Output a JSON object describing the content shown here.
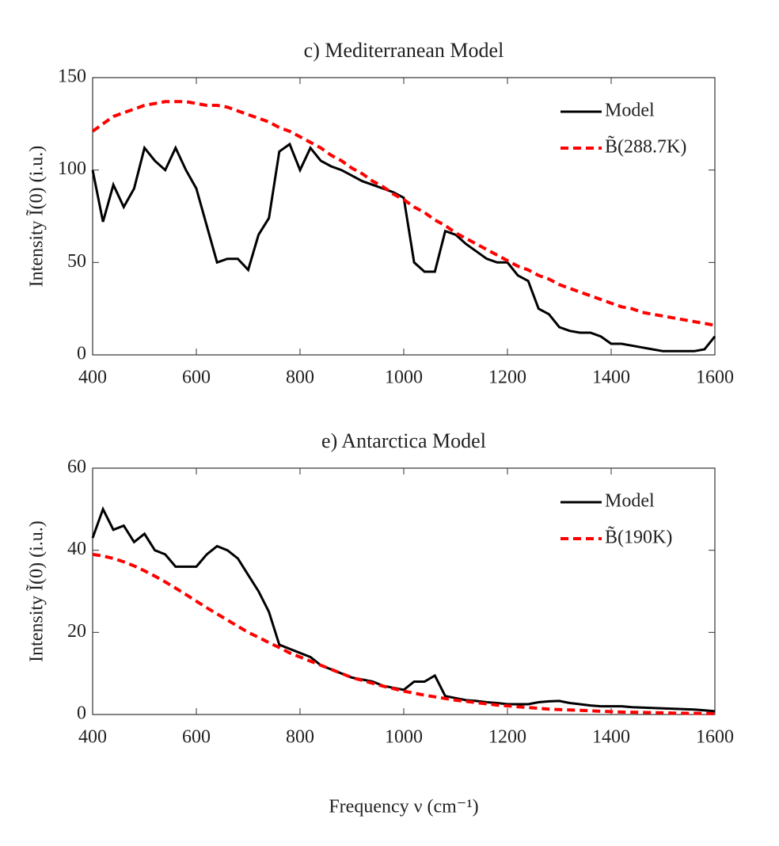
{
  "chart_data": [
    {
      "type": "line",
      "title": "c) Mediterranean Model",
      "ylabel": "Intensity Ĩ(0) (i.u.)",
      "x": [
        400,
        420,
        440,
        460,
        480,
        500,
        520,
        540,
        560,
        580,
        600,
        620,
        640,
        660,
        680,
        700,
        720,
        740,
        760,
        780,
        800,
        820,
        840,
        860,
        880,
        900,
        920,
        940,
        960,
        980,
        1000,
        1020,
        1040,
        1060,
        1080,
        1100,
        1120,
        1140,
        1160,
        1180,
        1200,
        1220,
        1240,
        1260,
        1280,
        1300,
        1320,
        1340,
        1360,
        1380,
        1400,
        1420,
        1440,
        1460,
        1480,
        1500,
        1520,
        1540,
        1560,
        1580,
        1600
      ],
      "series": [
        {
          "name": "Model",
          "color": "#000000",
          "style": "solid",
          "values": [
            100,
            72,
            92,
            80,
            90,
            112,
            105,
            100,
            112,
            100,
            90,
            70,
            50,
            52,
            52,
            46,
            65,
            74,
            110,
            114,
            100,
            112,
            105,
            102,
            100,
            97,
            94,
            92,
            90,
            88,
            85,
            50,
            45,
            45,
            67,
            65,
            60,
            56,
            52,
            50,
            50,
            43,
            40,
            25,
            22,
            15,
            13,
            12,
            12,
            10,
            6,
            6,
            5,
            4,
            3,
            2,
            2,
            2,
            2,
            3,
            10
          ]
        },
        {
          "name": "B̃(288.7K)",
          "color": "#ff0000",
          "style": "dashed",
          "values": [
            121,
            125,
            129,
            131,
            133,
            135,
            136,
            137,
            137,
            137,
            136,
            135,
            135,
            134,
            132,
            130,
            128,
            126,
            123,
            121,
            118,
            115,
            112,
            108,
            105,
            101,
            98,
            94,
            91,
            87,
            84,
            80,
            77,
            73,
            70,
            66,
            63,
            60,
            57,
            54,
            51,
            48,
            46,
            43,
            41,
            38,
            36,
            34,
            32,
            30,
            28,
            26,
            25,
            23,
            22,
            21,
            20,
            19,
            18,
            17,
            16
          ]
        }
      ],
      "xlim": [
        400,
        1600
      ],
      "xticks": [
        400,
        600,
        800,
        1000,
        1200,
        1400,
        1600
      ],
      "ylim": [
        0,
        150
      ],
      "yticks": [
        0,
        50,
        100,
        150
      ],
      "legend": "upper right"
    },
    {
      "type": "line",
      "title": "e) Antarctica Model",
      "ylabel": "Intensity Ĩ(0) (i.u.)",
      "xlabel": "Frequency ν (cm⁻¹)",
      "x": [
        400,
        420,
        440,
        460,
        480,
        500,
        520,
        540,
        560,
        580,
        600,
        620,
        640,
        660,
        680,
        700,
        720,
        740,
        760,
        780,
        800,
        820,
        840,
        860,
        880,
        900,
        920,
        940,
        960,
        980,
        1000,
        1020,
        1040,
        1060,
        1080,
        1100,
        1120,
        1140,
        1160,
        1180,
        1200,
        1220,
        1240,
        1260,
        1280,
        1300,
        1320,
        1340,
        1360,
        1380,
        1400,
        1420,
        1440,
        1460,
        1480,
        1500,
        1520,
        1540,
        1560,
        1580,
        1600
      ],
      "series": [
        {
          "name": "Model",
          "color": "#000000",
          "style": "solid",
          "values": [
            43,
            50,
            45,
            46,
            42,
            44,
            40,
            39,
            36,
            36,
            36,
            39,
            41,
            40,
            38,
            34,
            30,
            25,
            17,
            16,
            15,
            14,
            12,
            11,
            10,
            9,
            8.5,
            8,
            7,
            6.5,
            6,
            8,
            8,
            9.5,
            4.5,
            4,
            3.5,
            3.3,
            3,
            2.8,
            2.5,
            2.5,
            2.5,
            3,
            3.2,
            3.3,
            2.8,
            2.5,
            2.2,
            2,
            2,
            2,
            1.8,
            1.7,
            1.6,
            1.5,
            1.4,
            1.3,
            1.2,
            1,
            0.8
          ]
        },
        {
          "name": "B̃(190K)",
          "color": "#ff0000",
          "style": "dashed",
          "values": [
            39,
            38.6,
            38,
            37.2,
            36.2,
            35,
            33.7,
            32.3,
            30.8,
            29.2,
            27.6,
            26,
            24.5,
            23,
            21.5,
            20,
            18.8,
            17.5,
            16.3,
            15,
            14,
            13,
            12,
            11,
            10,
            9,
            8.3,
            7.6,
            6.9,
            6.3,
            5.7,
            5.2,
            4.7,
            4.3,
            3.9,
            3.5,
            3.2,
            2.9,
            2.6,
            2.3,
            2.1,
            1.9,
            1.7,
            1.5,
            1.3,
            1.2,
            1.1,
            1,
            0.9,
            0.8,
            0.7,
            0.6,
            0.55,
            0.5,
            0.45,
            0.4,
            0.35,
            0.3,
            0.28,
            0.25,
            0.22
          ]
        }
      ],
      "xlim": [
        400,
        1600
      ],
      "xticks": [
        400,
        600,
        800,
        1000,
        1200,
        1400,
        1600
      ],
      "ylim": [
        0,
        60
      ],
      "yticks": [
        0,
        20,
        40,
        60
      ],
      "legend": "upper right"
    }
  ]
}
